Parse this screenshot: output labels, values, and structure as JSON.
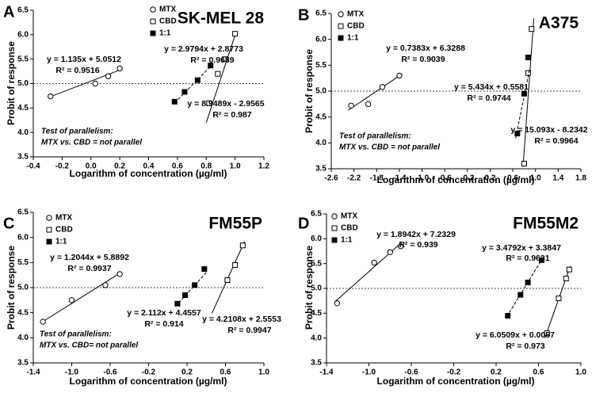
{
  "chart_data": [
    {
      "type": "scatter",
      "panel_label": "A",
      "title": "SK-MEL 28",
      "x_label": "Logarithm of concentration (µg/ml)",
      "y_label": "Probit of response",
      "xlim": [
        -0.4,
        1.2
      ],
      "xticks": [
        -0.4,
        -0.2,
        {
          "value": 0,
          "label": "0.0"
        },
        0.2,
        0.4,
        0.6,
        0.8,
        {
          "value": 1,
          "label": "1.0"
        },
        1.2
      ],
      "ylim": [
        3.5,
        6.5
      ],
      "yticks": [
        3.5,
        {
          "value": 4,
          "label": "4.0"
        },
        4.5,
        {
          "value": 5,
          "label": "5.0"
        },
        5.5,
        {
          "value": 6,
          "label": "6.0"
        },
        6.5
      ],
      "reference_line": 5,
      "annotations": [
        "Test of parallelism:",
        "MTX vs. CBD = not parallel"
      ],
      "series": [
        {
          "name": "MTX",
          "marker": "open-circle",
          "color": "#000000",
          "line_style": "solid",
          "x": [
            -0.28,
            0.03,
            0.12,
            0.2
          ],
          "values": [
            4.74,
            5.0,
            5.15,
            5.31
          ],
          "fit": {
            "equation": "y = 1.135x + 5.0512",
            "r_squared": "R² = 0.9516",
            "slope": 1.135,
            "intercept": 5.0512,
            "x_range": [
              -0.3,
              0.22
            ]
          }
        },
        {
          "name": "CBD",
          "marker": "open-square",
          "color": "#000000",
          "line_style": "solid",
          "x": [
            0.82,
            0.88,
            0.93,
            1.0
          ],
          "values": [
            4.6,
            5.2,
            5.5,
            6.02
          ],
          "fit": {
            "equation": "y = 8.9489x - 2.9565",
            "r_squared": "R² = 0.987",
            "slope": 8.9489,
            "intercept": -2.9565,
            "x_range": [
              0.8,
              1.0
            ]
          }
        },
        {
          "name": "1:1",
          "marker": "filled-square",
          "color": "#000000",
          "line_style": "dashed",
          "x": [
            0.58,
            0.65,
            0.74,
            0.83
          ],
          "values": [
            4.63,
            4.83,
            5.07,
            5.37
          ],
          "fit": {
            "equation": "y = 2.9794x + 2.8773",
            "r_squared": "R² = 0.9689",
            "slope": 2.9794,
            "intercept": 2.8773,
            "x_range": [
              0.58,
              0.84
            ]
          }
        }
      ]
    },
    {
      "type": "scatter",
      "panel_label": "B",
      "title": "A375",
      "x_label": "Logarithm of concentration (µg/ml)",
      "y_label": "Probit of response",
      "xlim": [
        -2.6,
        1.8
      ],
      "xticks": [
        -2.6,
        -2.2,
        -1.8,
        -1.4,
        {
          "value": -1,
          "label": "-1.0"
        },
        -0.6,
        -0.2,
        0.2,
        0.6,
        {
          "value": 1,
          "label": "1.0"
        },
        1.4,
        1.8
      ],
      "ylim": [
        3.5,
        6.5
      ],
      "yticks": [
        3.5,
        {
          "value": 4,
          "label": "4.0"
        },
        4.5,
        {
          "value": 5,
          "label": "5.0"
        },
        5.5,
        {
          "value": 6,
          "label": "6.0"
        },
        6.5
      ],
      "reference_line": 5,
      "annotations": [
        "Test of parallelism:",
        "MTX vs. CBD = not parallel"
      ],
      "series": [
        {
          "name": "MTX",
          "marker": "open-circle",
          "color": "#000000",
          "line_style": "solid",
          "x": [
            -2.25,
            -1.95,
            -1.7,
            -1.4
          ],
          "values": [
            4.72,
            4.75,
            5.08,
            5.3
          ],
          "fit": {
            "equation": "y = 0.7383x + 6.3288",
            "r_squared": "R² = 0.9039",
            "slope": 0.7383,
            "intercept": 6.3288,
            "x_range": [
              -2.3,
              -1.35
            ]
          }
        },
        {
          "name": "CBD",
          "marker": "open-square",
          "color": "#000000",
          "line_style": "solid",
          "x": [
            0.8,
            0.87,
            0.93
          ],
          "values": [
            3.6,
            5.35,
            6.2
          ],
          "fit": {
            "equation": "y = 15.093x - 8.2342",
            "r_squared": "R² = 0.9964",
            "slope": 15.093,
            "intercept": -8.2342,
            "x_range": [
              0.78,
              0.97
            ]
          }
        },
        {
          "name": "1:1",
          "marker": "filled-square",
          "color": "#000000",
          "line_style": "dashed",
          "x": [
            0.68,
            0.8,
            0.87
          ],
          "values": [
            4.18,
            4.95,
            5.65
          ],
          "fit": {
            "equation": "y = 5.434x + 0.5581",
            "r_squared": "R² = 0.9744",
            "slope": 5.434,
            "intercept": 0.5581,
            "x_range": [
              0.65,
              0.9
            ]
          }
        }
      ]
    },
    {
      "type": "scatter",
      "panel_label": "C",
      "title": "FM55P",
      "x_label": "Logarithm of concentration (µg/ml)",
      "y_label": "Probit of response",
      "xlim": [
        -1.4,
        1.0
      ],
      "xticks": [
        -1.4,
        {
          "value": -1,
          "label": "-1.0"
        },
        -0.6,
        -0.2,
        0.2,
        0.6,
        {
          "value": 1,
          "label": "1.0"
        }
      ],
      "ylim": [
        3.5,
        6.5
      ],
      "yticks": [
        3.5,
        {
          "value": 4,
          "label": "4.0"
        },
        4.5,
        {
          "value": 5,
          "label": "5.0"
        },
        5.5,
        {
          "value": 6,
          "label": "6.0"
        },
        6.5
      ],
      "reference_line": 5,
      "annotations": [
        "Test of parallelism:",
        "MTX vs. CBD= not parallel"
      ],
      "series": [
        {
          "name": "MTX",
          "marker": "open-circle",
          "color": "#000000",
          "line_style": "solid",
          "x": [
            -1.3,
            -1.0,
            -0.65,
            -0.5
          ],
          "values": [
            4.32,
            4.75,
            5.05,
            5.27
          ],
          "fit": {
            "equation": "y = 1.2044x + 5.8892",
            "r_squared": "R² = 0.9937",
            "slope": 1.2044,
            "intercept": 5.8892,
            "x_range": [
              -1.32,
              -0.5
            ]
          }
        },
        {
          "name": "CBD",
          "marker": "open-square",
          "color": "#000000",
          "line_style": "solid",
          "x": [
            0.62,
            0.7,
            0.78
          ],
          "values": [
            5.15,
            5.45,
            5.84
          ],
          "fit": {
            "equation": "y = 4.2108x + 2.5553",
            "r_squared": "R² = 0.9947",
            "slope": 4.2108,
            "intercept": 2.5553,
            "x_range": [
              0.46,
              0.8
            ]
          }
        },
        {
          "name": "1:1",
          "marker": "filled-square",
          "color": "#000000",
          "line_style": "dashed",
          "x": [
            0.1,
            0.18,
            0.28,
            0.38
          ],
          "values": [
            4.68,
            4.85,
            5.05,
            5.37
          ],
          "fit": {
            "equation": "y = 2.112x + 4.4557",
            "r_squared": "R² = 0.914",
            "slope": 2.112,
            "intercept": 4.4557,
            "x_range": [
              0.08,
              0.4
            ]
          }
        }
      ]
    },
    {
      "type": "scatter",
      "panel_label": "D",
      "title": "FM55M2",
      "x_label": "Logarithm of concentration (µg/ml)",
      "y_label": "Probit of response",
      "xlim": [
        -1.4,
        1.0
      ],
      "xticks": [
        -1.4,
        {
          "value": -1,
          "label": "-1.0"
        },
        -0.6,
        -0.2,
        0.2,
        0.6,
        {
          "value": 1,
          "label": "1.0"
        }
      ],
      "ylim": [
        3.5,
        6.5
      ],
      "yticks": [
        3.5,
        {
          "value": 4,
          "label": "4.0"
        },
        4.5,
        {
          "value": 5,
          "label": "5.0"
        },
        5.5,
        {
          "value": 6,
          "label": "6.0"
        },
        6.5
      ],
      "reference_line": 5,
      "series": [
        {
          "name": "MTX",
          "marker": "open-circle",
          "color": "#000000",
          "line_style": "solid",
          "x": [
            -1.3,
            -0.95,
            -0.8,
            -0.7
          ],
          "values": [
            4.7,
            5.52,
            5.73,
            5.85
          ],
          "fit": {
            "equation": "y = 1.8942x + 7.2329",
            "r_squared": "R² = 0.939",
            "slope": 1.8942,
            "intercept": 7.2329,
            "x_range": [
              -1.32,
              -0.7
            ]
          }
        },
        {
          "name": "CBD",
          "marker": "open-square",
          "color": "#000000",
          "line_style": "solid",
          "x": [
            0.68,
            0.79,
            0.86,
            0.89
          ],
          "values": [
            4.1,
            4.8,
            5.2,
            5.38
          ],
          "fit": {
            "equation": "y = 6.0509x + 0.0057",
            "r_squared": "R² = 0.973",
            "slope": 6.0509,
            "intercept": 0.0057,
            "x_range": [
              0.66,
              0.9
            ]
          }
        },
        {
          "name": "1:1",
          "marker": "filled-square",
          "color": "#000000",
          "line_style": "dashed",
          "x": [
            0.31,
            0.43,
            0.5,
            0.63
          ],
          "values": [
            4.45,
            4.87,
            5.12,
            5.57
          ],
          "fit": {
            "equation": "y = 3.4792x + 3.3847",
            "r_squared": "R² = 0.9631",
            "slope": 3.4792,
            "intercept": 3.3847,
            "x_range": [
              0.3,
              0.62
            ]
          }
        }
      ]
    }
  ]
}
